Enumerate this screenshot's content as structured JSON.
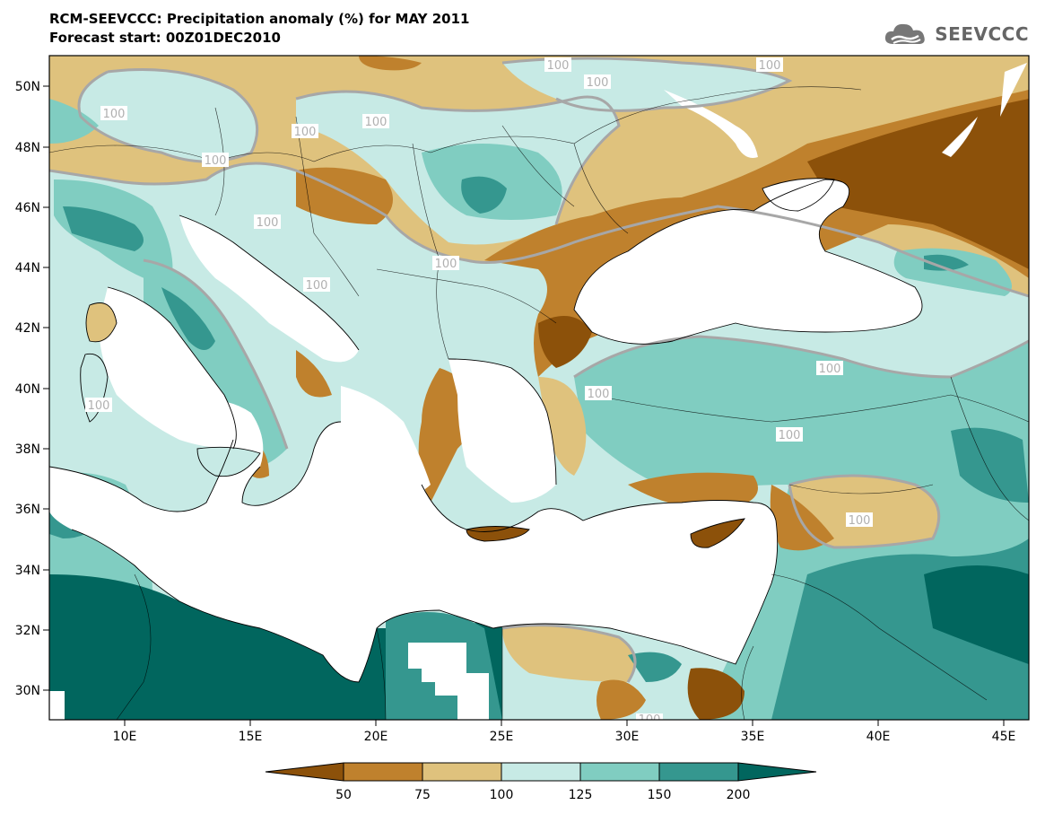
{
  "title_line1": "RCM-SEEVCCC: Precipitation anomaly (%) for MAY 2011",
  "title_line2": "Forecast start: 00Z01DEC2010",
  "logo_text": "SEEVCCC",
  "map": {
    "lon_range": [
      7,
      46
    ],
    "lat_range": [
      29,
      51
    ],
    "lat_ticks": [
      "50N",
      "48N",
      "46N",
      "44N",
      "42N",
      "40N",
      "38N",
      "36N",
      "34N",
      "32N",
      "30N"
    ],
    "lon_ticks": [
      "10E",
      "15E",
      "20E",
      "25E",
      "30E",
      "35E",
      "40E",
      "45E"
    ],
    "contour_labels": [
      "100",
      "100",
      "100",
      "100",
      "100",
      "100",
      "100",
      "100",
      "100",
      "100",
      "100",
      "100",
      "100",
      "100",
      "100",
      "100"
    ]
  },
  "legend": {
    "labels": [
      "50",
      "75",
      "100",
      "125",
      "150",
      "200"
    ],
    "colors": [
      "#8c510a",
      "#bf812d",
      "#dfc27d",
      "#c7eae5",
      "#80cdc1",
      "#35978f",
      "#01665e"
    ]
  },
  "colors": {
    "dry_strong": "#8c510a",
    "dry": "#bf812d",
    "dry_light": "#dfc27d",
    "wet_light": "#c7eae5",
    "wet": "#80cdc1",
    "wet_more": "#35978f",
    "wet_strong": "#01665e",
    "contour": "#999999",
    "sea": "#ffffff"
  }
}
